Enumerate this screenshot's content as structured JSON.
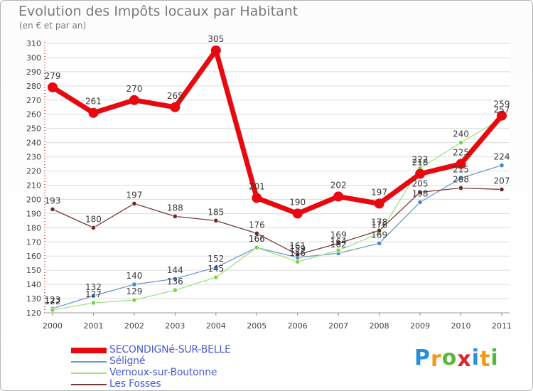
{
  "title": "Evolution des Impôts locaux par Habitant",
  "subtitle": "(en € et par an)",
  "brand": {
    "letters": [
      "P",
      "r",
      "o",
      "x",
      "i",
      "t",
      "i"
    ],
    "colors": [
      "#2a8fd8",
      "#f09a1a",
      "#59b53c",
      "#d8262e",
      "#2a8fd8",
      "#f09a1a",
      "#59b53c"
    ]
  },
  "chart_data": {
    "type": "line",
    "title": "Evolution des Impôts locaux par Habitant",
    "ylabel": "(en € et par an)",
    "xlabel": "",
    "categories": [
      "2000",
      "2001",
      "2002",
      "2003",
      "2004",
      "2005",
      "2006",
      "2007",
      "2008",
      "2009",
      "2010",
      "2011"
    ],
    "ylim": [
      120,
      310
    ],
    "yticks": [
      120,
      130,
      140,
      150,
      160,
      170,
      180,
      190,
      200,
      210,
      220,
      230,
      240,
      250,
      260,
      270,
      280,
      290,
      300,
      310
    ],
    "grid": "horizontal",
    "series": [
      {
        "name": "SECONDIGNé-SUR-BELLE",
        "color": "#e8080f",
        "marker": "#e8080f",
        "width": 7,
        "values": [
          279,
          261,
          270,
          265,
          305,
          201,
          190,
          202,
          197,
          218,
          225,
          259
        ]
      },
      {
        "name": "Séligné",
        "color": "#6f9ac8",
        "marker": "#3f87d6",
        "width": 1.3,
        "values": [
          123,
          132,
          140,
          144,
          152,
          166,
          159,
          162,
          169,
          198,
          215,
          224
        ]
      },
      {
        "name": "Vernoux-sur-Boutonne",
        "color": "#a2e084",
        "marker": "#7fd24c",
        "width": 1.3,
        "values": [
          122,
          127,
          129,
          136,
          145,
          166,
          156,
          164,
          176,
          222,
          240,
          257
        ]
      },
      {
        "name": "Les Fosses",
        "color": "#7a3838",
        "marker": "#6b2a2a",
        "width": 1.3,
        "values": [
          193,
          180,
          197,
          188,
          185,
          176,
          161,
          169,
          178,
          205,
          208,
          207
        ]
      }
    ],
    "legend": "bottom-left"
  }
}
